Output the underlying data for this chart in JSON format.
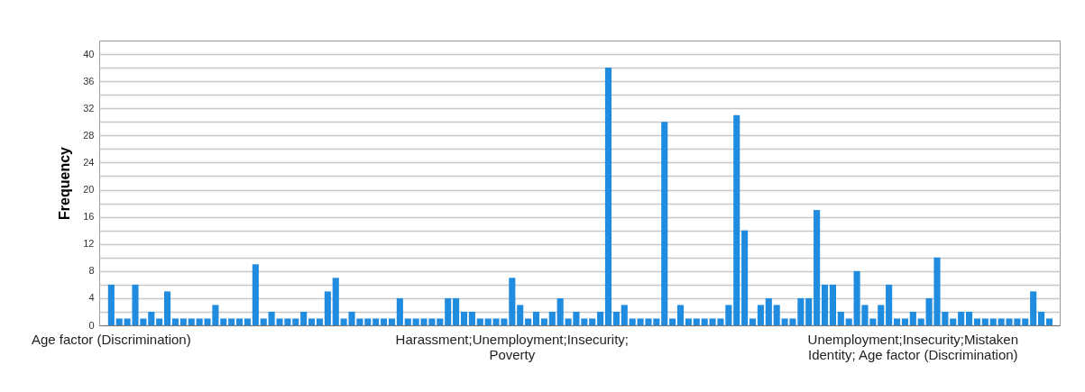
{
  "chart_data": {
    "type": "bar",
    "ylabel": "Frequency",
    "categories": [
      "Age factor (Discrimination)",
      null,
      null,
      null,
      null,
      null,
      null,
      null,
      null,
      null,
      null,
      null,
      null,
      null,
      null,
      null,
      null,
      null,
      null,
      null,
      null,
      null,
      null,
      null,
      null,
      null,
      null,
      null,
      null,
      null,
      null,
      null,
      null,
      null,
      null,
      null,
      null,
      null,
      null,
      null,
      null,
      null,
      null,
      null,
      null,
      null,
      null,
      null,
      null,
      null,
      "Harassment;Unemployment;Insecurity;\nPoverty",
      null,
      null,
      null,
      null,
      null,
      null,
      null,
      null,
      null,
      null,
      null,
      null,
      null,
      null,
      null,
      null,
      null,
      null,
      null,
      null,
      null,
      null,
      null,
      null,
      null,
      null,
      null,
      null,
      null,
      null,
      null,
      null,
      null,
      null,
      null,
      null,
      null,
      null,
      null,
      null,
      null,
      null,
      null,
      null,
      null,
      null,
      null,
      null,
      null,
      "Unemployment;Insecurity;Mistaken\nIdentity; Age factor (Discrimination)",
      null,
      null,
      null,
      null,
      null,
      null,
      null,
      null,
      null,
      null,
      null,
      null,
      null,
      null,
      null,
      null,
      null
    ],
    "values": [
      6,
      1,
      1,
      6,
      1,
      2,
      1,
      5,
      1,
      1,
      1,
      1,
      1,
      3,
      1,
      1,
      1,
      1,
      9,
      1,
      2,
      1,
      1,
      1,
      2,
      1,
      1,
      5,
      7,
      1,
      2,
      1,
      1,
      1,
      1,
      1,
      4,
      1,
      1,
      1,
      1,
      1,
      4,
      4,
      2,
      2,
      1,
      1,
      1,
      1,
      7,
      3,
      1,
      2,
      1,
      2,
      4,
      1,
      2,
      1,
      1,
      2,
      38,
      2,
      3,
      1,
      1,
      1,
      1,
      30,
      1,
      3,
      1,
      1,
      1,
      1,
      1,
      3,
      31,
      14,
      1,
      3,
      4,
      3,
      1,
      1,
      4,
      4,
      17,
      6,
      6,
      2,
      1,
      8,
      3,
      1,
      3,
      6,
      1,
      1,
      2,
      1,
      4,
      10,
      2,
      1,
      2,
      2,
      1,
      1,
      1,
      1,
      1,
      1,
      1,
      5,
      2,
      1
    ],
    "color": "#1f8ce0",
    "ylim": [
      0,
      42
    ],
    "yticks": [
      0,
      {
        "value": 2,
        "label": null
      },
      4,
      {
        "value": 6,
        "label": null
      },
      8,
      {
        "value": 10,
        "label": null
      },
      12,
      {
        "value": 14,
        "label": null
      },
      16,
      {
        "value": 18,
        "label": null
      },
      20,
      {
        "value": 22,
        "label": null
      },
      24,
      {
        "value": 26,
        "label": null
      },
      28,
      {
        "value": 30,
        "label": null
      },
      32,
      {
        "value": 34,
        "label": null
      },
      36,
      {
        "value": 38,
        "label": null
      },
      40
    ],
    "grid": "y"
  }
}
